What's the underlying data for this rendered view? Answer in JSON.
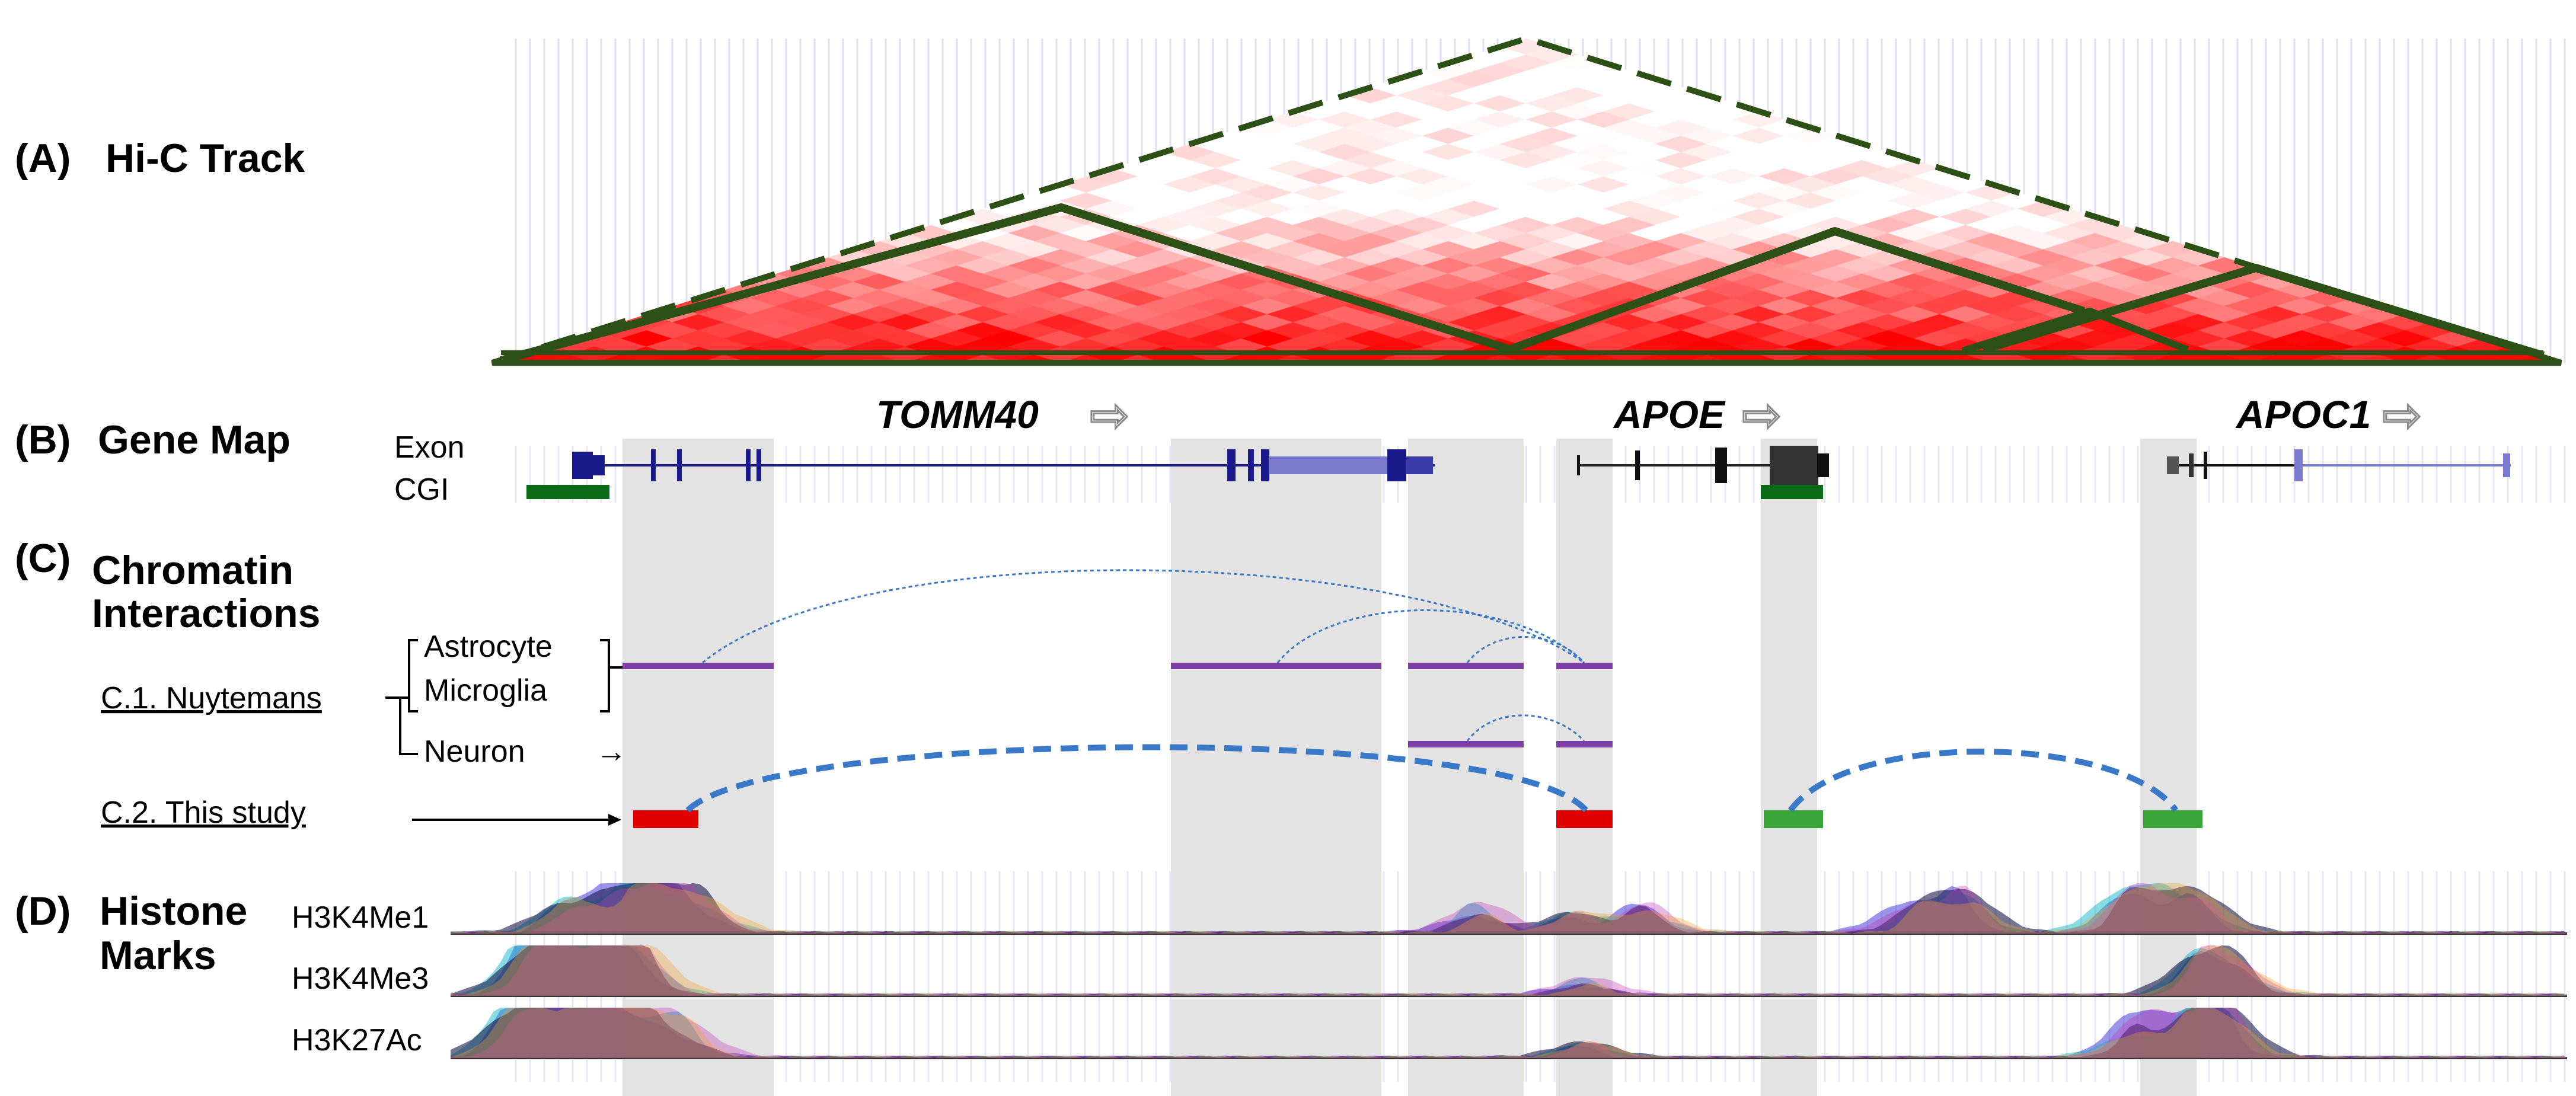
{
  "sections": {
    "a": {
      "letter": "(A)",
      "title": "Hi-C Track"
    },
    "b": {
      "letter": "(B)",
      "title": "Gene Map"
    },
    "c": {
      "letter": "(C)",
      "title_line1": "Chromatin",
      "title_line2": "Interactions"
    },
    "d": {
      "letter": "(D)",
      "title_line1": "Histone",
      "title_line2": "Marks"
    }
  },
  "gene_map": {
    "row_labels": {
      "exon": "Exon",
      "cgi": "CGI"
    },
    "genes": [
      {
        "name": "TOMM40",
        "strand_arrow": "⇨"
      },
      {
        "name": "APOE",
        "strand_arrow": "⇨"
      },
      {
        "name": "APOC1",
        "strand_arrow": "⇨"
      }
    ]
  },
  "interactions": {
    "nuytemans_label": "C.1. Nuytemans",
    "cell_types": [
      "Astrocyte",
      "Microglia",
      "Neuron"
    ],
    "neuron_arrow": "→",
    "study_label": "C.2. This study"
  },
  "histone_tracks": [
    "H3K4Me1",
    "H3K4Me3",
    "H3K27Ac"
  ],
  "colors": {
    "hic_red": "#ff0000",
    "tad_green": "#2d5016",
    "gene_navy": "#1a1a8c",
    "gene_black": "#111111",
    "cgi_green": "#0a6b14",
    "interaction_purple": "#7d3fa6",
    "arc_blue": "#3a78c8",
    "study_red": "#e00000",
    "study_green": "#3aa63a",
    "highlight_gray": "#e2e2e2",
    "grid_line": "#d8dcec"
  }
}
